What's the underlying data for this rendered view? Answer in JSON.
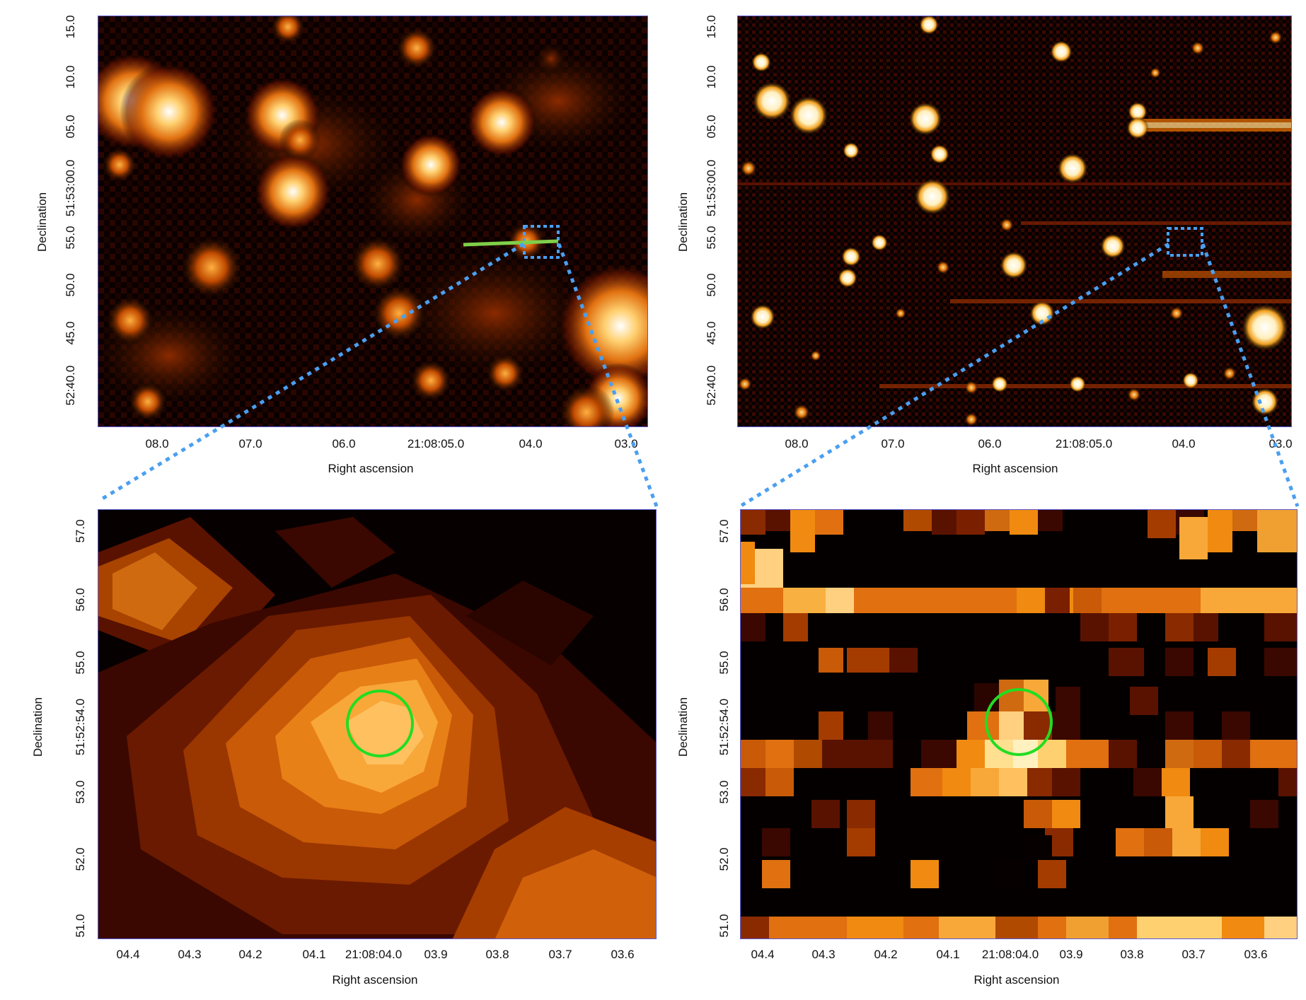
{
  "figure": {
    "colors": {
      "axis_frame": "#5b5bd6",
      "zoom_marker": "#4a9ff0",
      "source_circle": "#22dd22",
      "slit_line": "#7fcf4a",
      "colormap": [
        "#000000",
        "#3a0500",
        "#7a1e00",
        "#b84a00",
        "#f08a10",
        "#ffc860",
        "#ffffff"
      ]
    },
    "panels": [
      {
        "id": "top-left",
        "xlabel": "Right ascension",
        "ylabel": "Declination",
        "xticks": [
          "08.0",
          "07.0",
          "06.0",
          "21:08:05.0",
          "04.0",
          "03.0"
        ],
        "yticks": [
          "15.0",
          "10.0",
          "05.0",
          "51:53:00.0",
          "55.0",
          "50.0",
          "45.0",
          "52:40.0"
        ]
      },
      {
        "id": "top-right",
        "xlabel": "Right ascension",
        "ylabel": "Declination",
        "xticks": [
          "08.0",
          "07.0",
          "06.0",
          "21:08:05.0",
          "04.0",
          "03.0"
        ],
        "yticks": [
          "15.0",
          "10.0",
          "05.0",
          "51:53:00.0",
          "55.0",
          "50.0",
          "45.0",
          "52:40.0"
        ]
      },
      {
        "id": "bottom-left",
        "xlabel": "Right ascension",
        "ylabel": "Declination",
        "xticks": [
          "04.4",
          "04.3",
          "04.2",
          "04.1",
          "21:08:04.0",
          "03.9",
          "03.8",
          "03.7",
          "03.6"
        ],
        "yticks": [
          "57.0",
          "56.0",
          "55.0",
          "51:52:54.0",
          "53.0",
          "52.0",
          "51.0"
        ]
      },
      {
        "id": "bottom-right",
        "xlabel": "Right ascension",
        "ylabel": "Declination",
        "xticks": [
          "04.4",
          "04.3",
          "04.2",
          "04.1",
          "21:08:04.0",
          "03.9",
          "03.8",
          "03.7",
          "03.6"
        ],
        "yticks": [
          "57.0",
          "56.0",
          "55.0",
          "51:52:54.0",
          "53.0",
          "52.0",
          "51.0"
        ]
      }
    ]
  }
}
